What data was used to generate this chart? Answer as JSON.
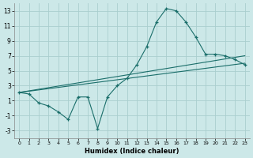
{
  "xlabel": "Humidex (Indice chaleur)",
  "background_color": "#cce8e8",
  "grid_color": "#aacece",
  "line_color": "#1a6e6a",
  "xlim": [
    -0.5,
    23.5
  ],
  "ylim": [
    -4.0,
    14.0
  ],
  "yticks": [
    -3,
    -1,
    1,
    3,
    5,
    7,
    9,
    11,
    13
  ],
  "xticks": [
    0,
    1,
    2,
    3,
    4,
    5,
    6,
    7,
    8,
    9,
    10,
    11,
    12,
    13,
    14,
    15,
    16,
    17,
    18,
    19,
    20,
    21,
    22,
    23
  ],
  "curve1_x": [
    0,
    1,
    2,
    3,
    4,
    5,
    6,
    7,
    8,
    9,
    10,
    11,
    12,
    13,
    14,
    15,
    16,
    17,
    18,
    19,
    20,
    21,
    22,
    23
  ],
  "curve1_y": [
    2.1,
    1.9,
    0.7,
    0.3,
    -0.5,
    -1.5,
    1.5,
    1.5,
    -2.7,
    1.5,
    3.0,
    4.0,
    5.8,
    8.2,
    11.5,
    13.3,
    13.0,
    11.5,
    9.5,
    7.2,
    7.2,
    7.0,
    6.5,
    5.8
  ],
  "line1_x": [
    0,
    23
  ],
  "line1_y": [
    2.1,
    6.0
  ],
  "line2_x": [
    0,
    23
  ],
  "line2_y": [
    2.1,
    7.0
  ]
}
